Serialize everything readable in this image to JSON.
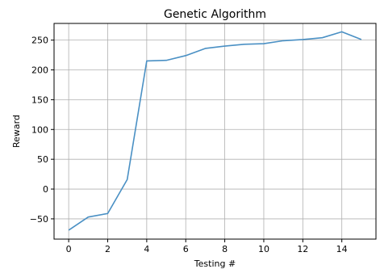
{
  "chart_data": {
    "type": "line",
    "title": "Genetic Algorithm",
    "xlabel": "Testing #",
    "ylabel": "Reward",
    "xlim": [
      -0.75,
      15.75
    ],
    "ylim": [
      -84,
      278
    ],
    "xticks": [
      0,
      2,
      4,
      6,
      8,
      10,
      12,
      14
    ],
    "yticks": [
      -50,
      0,
      50,
      100,
      150,
      200,
      250
    ],
    "grid": true,
    "series": [
      {
        "color": "#4a90c4",
        "x": [
          0,
          1,
          2,
          3,
          4,
          5,
          6,
          7,
          8,
          9,
          10,
          11,
          12,
          13,
          14,
          15
        ],
        "y": [
          -69,
          -47,
          -41,
          16,
          215,
          216,
          224,
          236,
          240,
          243,
          244,
          249,
          251,
          254,
          264,
          251
        ]
      }
    ]
  }
}
